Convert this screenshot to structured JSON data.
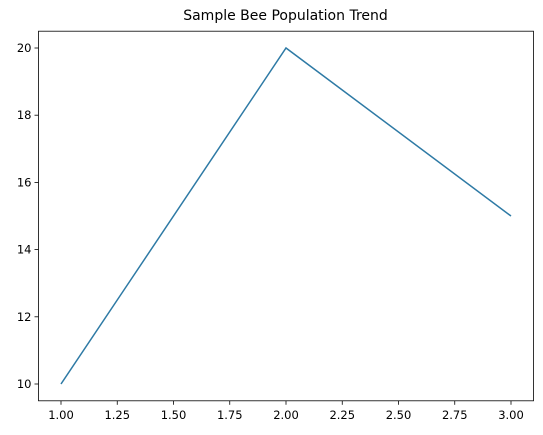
{
  "chart_data": {
    "type": "line",
    "title": "Sample Bee Population Trend",
    "x": [
      1,
      2,
      3
    ],
    "series": [
      {
        "color": "#2e7aa5",
        "values": [
          10,
          20,
          15
        ]
      }
    ],
    "xlim": [
      0.9,
      3.1
    ],
    "xticks": [
      {
        "value": 1,
        "label": "1.00"
      },
      {
        "value": 1.25,
        "label": "1.25"
      },
      {
        "value": 1.5,
        "label": "1.50"
      },
      {
        "value": 1.75,
        "label": "1.75"
      },
      {
        "value": 2,
        "label": "2.00"
      },
      {
        "value": 2.25,
        "label": "2.25"
      },
      {
        "value": 2.5,
        "label": "2.50"
      },
      {
        "value": 2.75,
        "label": "2.75"
      },
      {
        "value": 3,
        "label": "3.00"
      }
    ],
    "ylim": [
      9.5,
      20.5
    ],
    "yticks": [
      10,
      12,
      14,
      16,
      18,
      20
    ],
    "grid": false
  }
}
